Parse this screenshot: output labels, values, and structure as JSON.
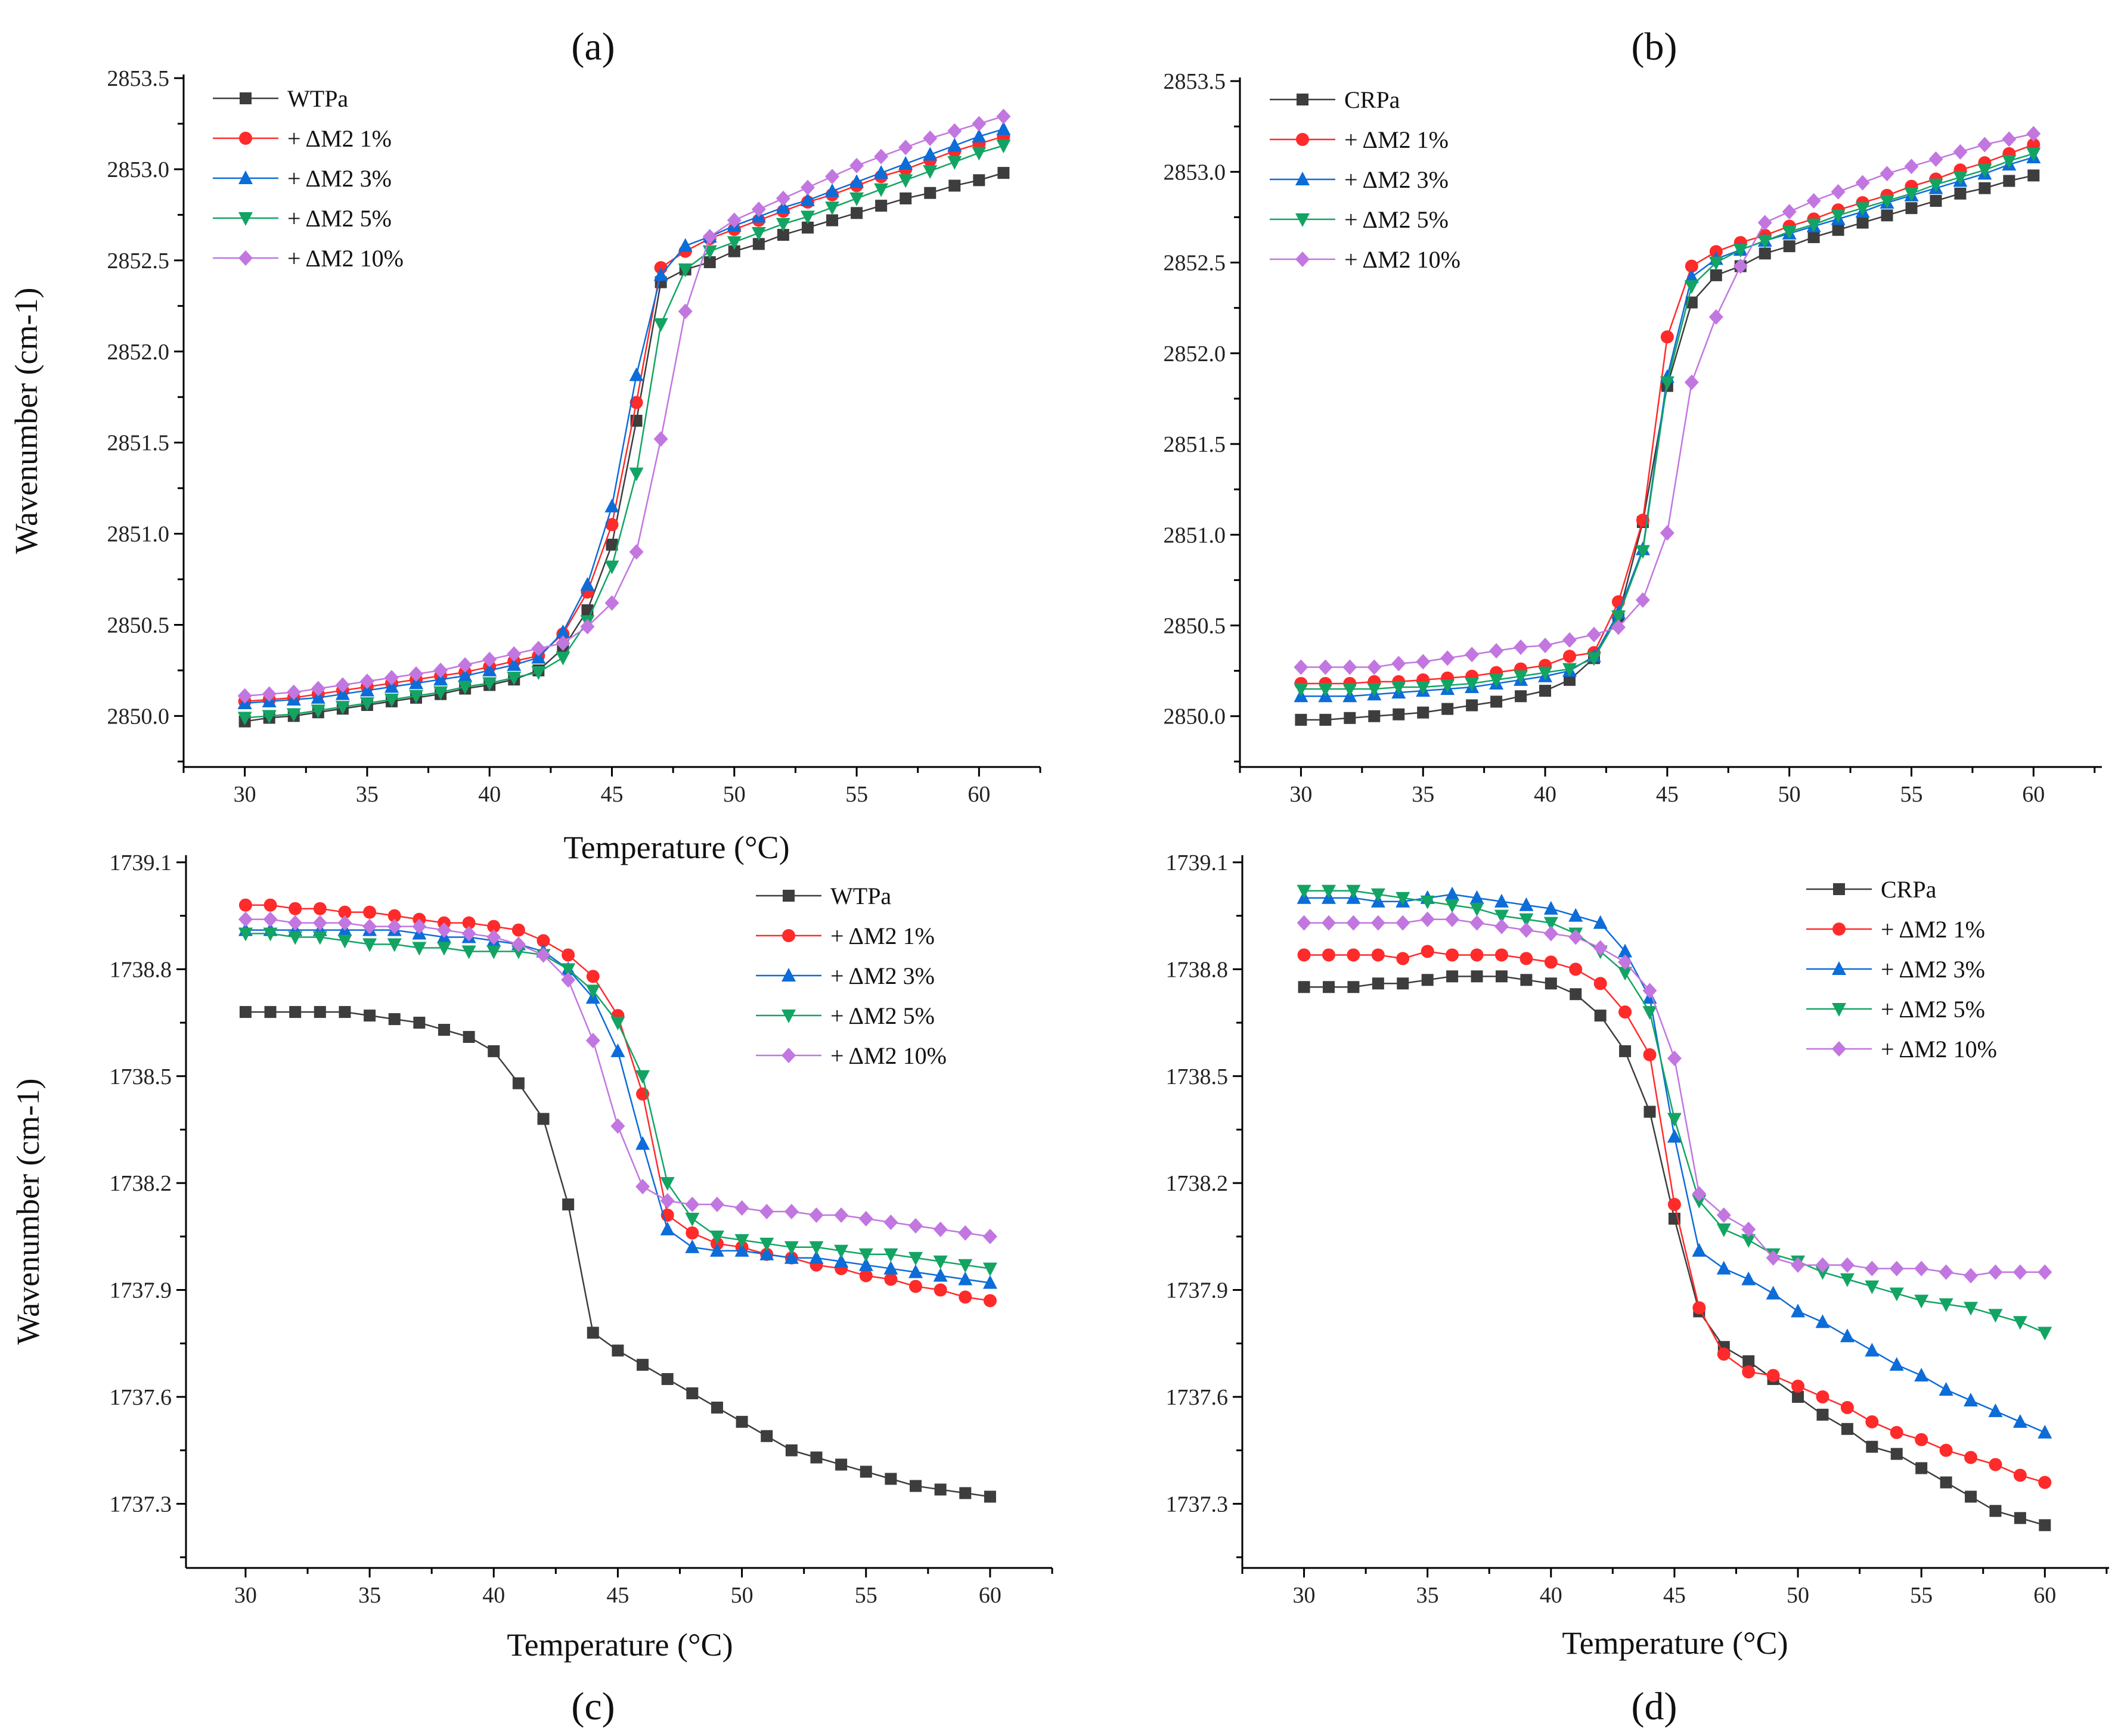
{
  "colors": {
    "axis": "#000000",
    "s0": "#3d3d3d",
    "s1": "#ff2a2a",
    "s2": "#0c6cd8",
    "s3": "#13a463",
    "s4": "#c276e0"
  },
  "chart_data": [
    {
      "panel": "(a)",
      "type": "line",
      "xlabel": "Temperature (°C)",
      "ylabel": "Wavenumber (cm-1)",
      "xlim": [
        27.5,
        62.5
      ],
      "ylim": [
        2849.72,
        2853.52
      ],
      "xticks": [
        "30",
        "35",
        "40",
        "45",
        "50",
        "55",
        "60"
      ],
      "yticks": [
        "2850.0",
        "2850.5",
        "2851.0",
        "2851.5",
        "2852.0",
        "2852.5",
        "2853.0",
        "2853.5"
      ],
      "legend": "top-left",
      "x": [
        30,
        31,
        32,
        33,
        34,
        35,
        36,
        37,
        38,
        39,
        40,
        41,
        42,
        43,
        44,
        45,
        46,
        47,
        48,
        49,
        50,
        51,
        52,
        53,
        54,
        55,
        56,
        57,
        58,
        59,
        60,
        61
      ],
      "series": [
        {
          "name": "WTPa",
          "marker": "square",
          "values": [
            2849.97,
            2849.99,
            2850.0,
            2850.02,
            2850.04,
            2850.06,
            2850.08,
            2850.1,
            2850.12,
            2850.15,
            2850.17,
            2850.2,
            2850.25,
            2850.37,
            2850.58,
            2850.94,
            2851.62,
            2852.38,
            2852.45,
            2852.49,
            2852.55,
            2852.59,
            2852.64,
            2852.68,
            2852.72,
            2852.76,
            2852.8,
            2852.84,
            2852.87,
            2852.91,
            2852.94,
            2852.98
          ]
        },
        {
          "name": "+ ΔM2 1%",
          "marker": "circle",
          "values": [
            2850.08,
            2850.09,
            2850.1,
            2850.12,
            2850.14,
            2850.16,
            2850.18,
            2850.2,
            2850.22,
            2850.24,
            2850.27,
            2850.3,
            2850.33,
            2850.45,
            2850.68,
            2851.05,
            2851.72,
            2852.46,
            2852.55,
            2852.62,
            2852.67,
            2852.72,
            2852.77,
            2852.82,
            2852.86,
            2852.91,
            2852.96,
            2853.0,
            2853.05,
            2853.1,
            2853.14,
            2853.18
          ]
        },
        {
          "name": "+ ΔM2 3%",
          "marker": "triangle-up",
          "values": [
            2850.07,
            2850.08,
            2850.09,
            2850.1,
            2850.12,
            2850.14,
            2850.16,
            2850.18,
            2850.2,
            2850.22,
            2850.25,
            2850.28,
            2850.32,
            2850.46,
            2850.72,
            2851.15,
            2851.87,
            2852.42,
            2852.58,
            2852.63,
            2852.69,
            2852.74,
            2852.79,
            2852.83,
            2852.88,
            2852.93,
            2852.98,
            2853.03,
            2853.08,
            2853.13,
            2853.18,
            2853.22
          ]
        },
        {
          "name": "+ ΔM2 5%",
          "marker": "triangle-down",
          "values": [
            2849.99,
            2850.0,
            2850.01,
            2850.03,
            2850.05,
            2850.07,
            2850.09,
            2850.11,
            2850.13,
            2850.16,
            2850.18,
            2850.21,
            2850.24,
            2850.32,
            2850.52,
            2850.82,
            2851.33,
            2852.15,
            2852.45,
            2852.55,
            2852.6,
            2852.65,
            2852.7,
            2852.74,
            2852.79,
            2852.84,
            2852.89,
            2852.94,
            2852.99,
            2853.04,
            2853.09,
            2853.13
          ]
        },
        {
          "name": "+ ΔM2 10%",
          "marker": "diamond",
          "values": [
            2850.11,
            2850.12,
            2850.13,
            2850.15,
            2850.17,
            2850.19,
            2850.21,
            2850.23,
            2850.25,
            2850.28,
            2850.31,
            2850.34,
            2850.37,
            2850.4,
            2850.49,
            2850.62,
            2850.9,
            2851.52,
            2852.22,
            2852.63,
            2852.72,
            2852.78,
            2852.84,
            2852.9,
            2852.96,
            2853.02,
            2853.07,
            2853.12,
            2853.17,
            2853.21,
            2853.25,
            2853.29
          ]
        }
      ]
    },
    {
      "panel": "(b)",
      "type": "line",
      "xlabel": "",
      "ylabel": "",
      "xlim": [
        27.5,
        62.8
      ],
      "ylim": [
        2849.72,
        2853.52
      ],
      "xticks": [
        "30",
        "35",
        "40",
        "45",
        "50",
        "55",
        "60"
      ],
      "yticks": [
        "2850.0",
        "2850.5",
        "2851.0",
        "2851.5",
        "2852.0",
        "2852.5",
        "2853.0",
        "2853.5"
      ],
      "legend": "top-left",
      "x": [
        30,
        31,
        32,
        33,
        34,
        35,
        36,
        37,
        38,
        39,
        40,
        41,
        42,
        43,
        44,
        45,
        46,
        47,
        48,
        49,
        50,
        51,
        52,
        53,
        54,
        55,
        56,
        57,
        58,
        59,
        60
      ],
      "series": [
        {
          "name": "CRPa",
          "marker": "square",
          "values": [
            2849.98,
            2849.98,
            2849.99,
            2850.0,
            2850.01,
            2850.02,
            2850.04,
            2850.06,
            2850.08,
            2850.11,
            2850.14,
            2850.2,
            2850.32,
            2850.55,
            2851.07,
            2851.82,
            2852.28,
            2852.43,
            2852.48,
            2852.55,
            2852.59,
            2852.64,
            2852.68,
            2852.72,
            2852.76,
            2852.8,
            2852.84,
            2852.88,
            2852.91,
            2852.95,
            2852.98
          ]
        },
        {
          "name": "+ ΔM2 1%",
          "marker": "circle",
          "values": [
            2850.18,
            2850.18,
            2850.18,
            2850.19,
            2850.19,
            2850.2,
            2850.21,
            2850.22,
            2850.24,
            2850.26,
            2850.28,
            2850.33,
            2850.35,
            2850.63,
            2851.08,
            2852.09,
            2852.48,
            2852.56,
            2852.61,
            2852.65,
            2852.7,
            2852.74,
            2852.79,
            2852.83,
            2852.87,
            2852.92,
            2852.96,
            2853.01,
            2853.05,
            2853.1,
            2853.15
          ]
        },
        {
          "name": "+ ΔM2 3%",
          "marker": "triangle-up",
          "values": [
            2850.11,
            2850.11,
            2850.11,
            2850.12,
            2850.13,
            2850.14,
            2850.15,
            2850.16,
            2850.18,
            2850.2,
            2850.22,
            2850.25,
            2850.33,
            2850.57,
            2850.92,
            2851.87,
            2852.42,
            2852.52,
            2852.57,
            2852.62,
            2852.66,
            2852.7,
            2852.74,
            2852.78,
            2852.83,
            2852.87,
            2852.91,
            2852.95,
            2852.99,
            2853.04,
            2853.08
          ]
        },
        {
          "name": "+ ΔM2 5%",
          "marker": "triangle-down",
          "values": [
            2850.15,
            2850.15,
            2850.15,
            2850.15,
            2850.16,
            2850.16,
            2850.17,
            2850.18,
            2850.2,
            2850.22,
            2850.24,
            2850.26,
            2850.32,
            2850.55,
            2850.91,
            2851.84,
            2852.37,
            2852.5,
            2852.57,
            2852.62,
            2852.67,
            2852.71,
            2852.76,
            2852.8,
            2852.84,
            2852.88,
            2852.93,
            2852.97,
            2853.01,
            2853.06,
            2853.1
          ]
        },
        {
          "name": "+ ΔM2 10%",
          "marker": "diamond",
          "values": [
            2850.27,
            2850.27,
            2850.27,
            2850.27,
            2850.29,
            2850.3,
            2850.32,
            2850.34,
            2850.36,
            2850.38,
            2850.39,
            2850.42,
            2850.45,
            2850.49,
            2850.64,
            2851.01,
            2851.84,
            2852.2,
            2852.48,
            2852.72,
            2852.78,
            2852.84,
            2852.89,
            2852.94,
            2852.99,
            2853.03,
            2853.07,
            2853.11,
            2853.15,
            2853.18,
            2853.21
          ]
        }
      ]
    },
    {
      "panel": "(c)",
      "type": "line",
      "xlabel": "Temperature (°C)",
      "ylabel": "Wavenumber (cm-1)",
      "xlim": [
        27.6,
        62.5
      ],
      "ylim": [
        1737.12,
        1739.12
      ],
      "xticks": [
        "30",
        "35",
        "40",
        "45",
        "50",
        "55",
        "60"
      ],
      "yticks": [
        "1737.3",
        "1737.6",
        "1737.9",
        "1738.2",
        "1738.5",
        "1738.8",
        "1739.1"
      ],
      "legend": "top-right",
      "x": [
        30,
        31,
        32,
        33,
        34,
        35,
        36,
        37,
        38,
        39,
        40,
        41,
        42,
        43,
        44,
        45,
        46,
        47,
        48,
        49,
        50,
        51,
        52,
        53,
        54,
        55,
        56,
        57,
        58,
        59,
        60
      ],
      "series": [
        {
          "name": "WTPa",
          "marker": "square",
          "values": [
            1738.68,
            1738.68,
            1738.68,
            1738.68,
            1738.68,
            1738.67,
            1738.66,
            1738.65,
            1738.63,
            1738.61,
            1738.57,
            1738.48,
            1738.38,
            1738.14,
            1737.78,
            1737.73,
            1737.69,
            1737.65,
            1737.61,
            1737.57,
            1737.53,
            1737.49,
            1737.45,
            1737.43,
            1737.41,
            1737.39,
            1737.37,
            1737.35,
            1737.34,
            1737.33,
            1737.32
          ]
        },
        {
          "name": "+ ΔM2 1%",
          "marker": "circle",
          "values": [
            1738.98,
            1738.98,
            1738.97,
            1738.97,
            1738.96,
            1738.96,
            1738.95,
            1738.94,
            1738.93,
            1738.93,
            1738.92,
            1738.91,
            1738.88,
            1738.84,
            1738.78,
            1738.67,
            1738.45,
            1738.11,
            1738.06,
            1738.03,
            1738.02,
            1738.0,
            1737.99,
            1737.97,
            1737.96,
            1737.94,
            1737.93,
            1737.91,
            1737.9,
            1737.88,
            1737.87
          ]
        },
        {
          "name": "+ ΔM2 3%",
          "marker": "triangle-up",
          "values": [
            1738.91,
            1738.91,
            1738.91,
            1738.91,
            1738.91,
            1738.91,
            1738.91,
            1738.9,
            1738.89,
            1738.89,
            1738.88,
            1738.87,
            1738.85,
            1738.8,
            1738.72,
            1738.57,
            1738.31,
            1738.07,
            1738.02,
            1738.01,
            1738.01,
            1738.0,
            1737.99,
            1737.99,
            1737.98,
            1737.97,
            1737.96,
            1737.95,
            1737.94,
            1737.93,
            1737.92
          ]
        },
        {
          "name": "+ ΔM2 5%",
          "marker": "triangle-down",
          "values": [
            1738.9,
            1738.9,
            1738.89,
            1738.89,
            1738.88,
            1738.87,
            1738.87,
            1738.86,
            1738.86,
            1738.85,
            1738.85,
            1738.85,
            1738.84,
            1738.8,
            1738.74,
            1738.65,
            1738.5,
            1738.2,
            1738.1,
            1738.05,
            1738.04,
            1738.03,
            1738.02,
            1738.02,
            1738.01,
            1738.0,
            1738.0,
            1737.99,
            1737.98,
            1737.97,
            1737.96
          ]
        },
        {
          "name": "+ ΔM2 10%",
          "marker": "diamond",
          "values": [
            1738.94,
            1738.94,
            1738.93,
            1738.93,
            1738.93,
            1738.92,
            1738.92,
            1738.92,
            1738.91,
            1738.9,
            1738.89,
            1738.87,
            1738.84,
            1738.77,
            1738.6,
            1738.36,
            1738.19,
            1738.15,
            1738.14,
            1738.14,
            1738.13,
            1738.12,
            1738.12,
            1738.11,
            1738.11,
            1738.1,
            1738.09,
            1738.08,
            1738.07,
            1738.06,
            1738.05
          ]
        }
      ]
    },
    {
      "panel": "(d)",
      "type": "line",
      "xlabel": "Temperature (°C)",
      "ylabel": "",
      "xlim": [
        27.5,
        62.6
      ],
      "ylim": [
        1737.12,
        1739.12
      ],
      "xticks": [
        "30",
        "35",
        "40",
        "45",
        "50",
        "55",
        "60"
      ],
      "yticks": [
        "1737.3",
        "1737.6",
        "1737.9",
        "1738.2",
        "1738.5",
        "1738.8",
        "1739.1"
      ],
      "legend": "top-right",
      "x": [
        30,
        31,
        32,
        33,
        34,
        35,
        36,
        37,
        38,
        39,
        40,
        41,
        42,
        43,
        44,
        45,
        46,
        47,
        48,
        49,
        50,
        51,
        52,
        53,
        54,
        55,
        56,
        57,
        58,
        59,
        60
      ],
      "series": [
        {
          "name": "CRPa",
          "marker": "square",
          "values": [
            1738.75,
            1738.75,
            1738.75,
            1738.76,
            1738.76,
            1738.77,
            1738.78,
            1738.78,
            1738.78,
            1738.77,
            1738.76,
            1738.73,
            1738.67,
            1738.57,
            1738.4,
            1738.1,
            1737.84,
            1737.74,
            1737.7,
            1737.65,
            1737.6,
            1737.55,
            1737.51,
            1737.46,
            1737.44,
            1737.4,
            1737.36,
            1737.32,
            1737.28,
            1737.26,
            1737.24
          ]
        },
        {
          "name": "+ ΔM2 1%",
          "marker": "circle",
          "values": [
            1738.84,
            1738.84,
            1738.84,
            1738.84,
            1738.83,
            1738.85,
            1738.84,
            1738.84,
            1738.84,
            1738.83,
            1738.82,
            1738.8,
            1738.76,
            1738.68,
            1738.56,
            1738.14,
            1737.85,
            1737.72,
            1737.67,
            1737.66,
            1737.63,
            1737.6,
            1737.57,
            1737.53,
            1737.5,
            1737.48,
            1737.45,
            1737.43,
            1737.41,
            1737.38,
            1737.36
          ]
        },
        {
          "name": "+ ΔM2 3%",
          "marker": "triangle-up",
          "values": [
            1739.0,
            1739.0,
            1739.0,
            1738.99,
            1738.99,
            1739.0,
            1739.01,
            1739.0,
            1738.99,
            1738.98,
            1738.97,
            1738.95,
            1738.93,
            1738.85,
            1738.72,
            1738.33,
            1738.01,
            1737.96,
            1737.93,
            1737.89,
            1737.84,
            1737.81,
            1737.77,
            1737.73,
            1737.69,
            1737.66,
            1737.62,
            1737.59,
            1737.56,
            1737.53,
            1737.5
          ]
        },
        {
          "name": "+ ΔM2 5%",
          "marker": "triangle-down",
          "values": [
            1739.02,
            1739.02,
            1739.02,
            1739.01,
            1739.0,
            1738.99,
            1738.98,
            1738.97,
            1738.95,
            1738.94,
            1738.93,
            1738.9,
            1738.85,
            1738.79,
            1738.68,
            1738.38,
            1738.15,
            1738.07,
            1738.04,
            1738.0,
            1737.98,
            1737.95,
            1737.93,
            1737.91,
            1737.89,
            1737.87,
            1737.86,
            1737.85,
            1737.83,
            1737.81,
            1737.78
          ]
        },
        {
          "name": "+ ΔM2 10%",
          "marker": "diamond",
          "values": [
            1738.93,
            1738.93,
            1738.93,
            1738.93,
            1738.93,
            1738.94,
            1738.94,
            1738.93,
            1738.92,
            1738.91,
            1738.9,
            1738.89,
            1738.86,
            1738.82,
            1738.74,
            1738.55,
            1738.17,
            1738.11,
            1738.07,
            1737.99,
            1737.97,
            1737.97,
            1737.97,
            1737.96,
            1737.96,
            1737.96,
            1737.95,
            1737.94,
            1737.95,
            1737.95,
            1737.95
          ]
        }
      ]
    }
  ]
}
